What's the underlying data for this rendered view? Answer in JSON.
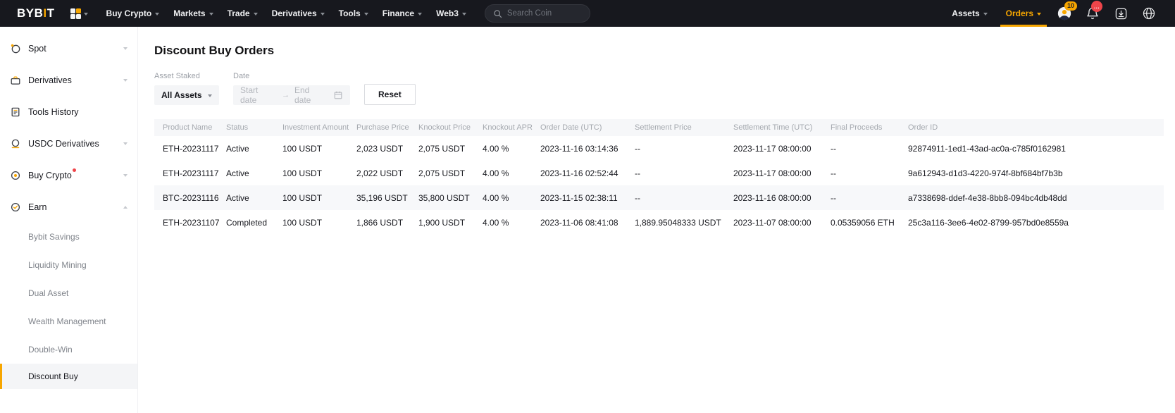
{
  "colors": {
    "accent": "#f7a600",
    "topbar_bg": "#17181e",
    "badge_red": "#ef454a",
    "text_dark": "#17181e",
    "text_muted": "#a4a8ae"
  },
  "topnav": {
    "logo": {
      "part1": "BYB",
      "accent": "I",
      "part2": "T"
    },
    "menu": [
      "Buy Crypto",
      "Markets",
      "Trade",
      "Derivatives",
      "Tools",
      "Finance",
      "Web3"
    ],
    "search_placeholder": "Search Coin",
    "assets_label": "Assets",
    "orders_label": "Orders",
    "chat_badge": "10",
    "bell_badge": "..."
  },
  "sidebar": {
    "items": [
      {
        "label": "Spot"
      },
      {
        "label": "Derivatives"
      },
      {
        "label": "Tools History"
      },
      {
        "label": "USDC Derivatives"
      },
      {
        "label": "Buy Crypto"
      },
      {
        "label": "Earn"
      }
    ],
    "earn_subitems": [
      {
        "label": "Bybit Savings"
      },
      {
        "label": "Liquidity Mining"
      },
      {
        "label": "Dual Asset"
      },
      {
        "label": "Wealth Management"
      },
      {
        "label": "Double-Win"
      },
      {
        "label": "Discount Buy"
      }
    ],
    "selected_subitem": "Discount Buy"
  },
  "main": {
    "title": "Discount Buy Orders",
    "filters": {
      "asset_staked_label": "Asset Staked",
      "asset_staked_value": "All Assets",
      "date_label": "Date",
      "start_placeholder": "Start date",
      "end_placeholder": "End date",
      "reset_label": "Reset"
    },
    "table": {
      "columns": [
        "Product Name",
        "Status",
        "Investment Amount",
        "Purchase Price",
        "Knockout Price",
        "Knockout APR",
        "Order Date (UTC)",
        "Settlement Price",
        "Settlement Time (UTC)",
        "Final Proceeds",
        "Order ID"
      ],
      "rows": [
        [
          "ETH-20231117",
          "Active",
          "100 USDT",
          "2,023 USDT",
          "2,075 USDT",
          "4.00 %",
          "2023-11-16 03:14:36",
          "--",
          "2023-11-17 08:00:00",
          "--",
          "92874911-1ed1-43ad-ac0a-c785f0162981"
        ],
        [
          "ETH-20231117",
          "Active",
          "100 USDT",
          "2,022 USDT",
          "2,075 USDT",
          "4.00 %",
          "2023-11-16 02:52:44",
          "--",
          "2023-11-17 08:00:00",
          "--",
          "9a612943-d1d3-4220-974f-8bf684bf7b3b"
        ],
        [
          "BTC-20231116",
          "Active",
          "100 USDT",
          "35,196 USDT",
          "35,800 USDT",
          "4.00 %",
          "2023-11-15 02:38:11",
          "--",
          "2023-11-16 08:00:00",
          "--",
          "a7338698-ddef-4e38-8bb8-094bc4db48dd"
        ],
        [
          "ETH-20231107",
          "Completed",
          "100 USDT",
          "1,866 USDT",
          "1,900 USDT",
          "4.00 %",
          "2023-11-06 08:41:08",
          "1,889.95048333 USDT",
          "2023-11-07 08:00:00",
          "0.05359056 ETH",
          "25c3a116-3ee6-4e02-8799-957bd0e8559a"
        ]
      ],
      "highlighted_row": 2
    }
  }
}
